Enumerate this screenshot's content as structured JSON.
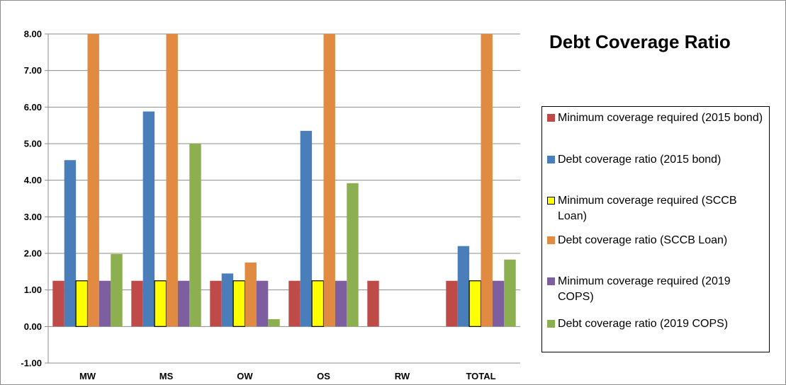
{
  "chart_data": {
    "type": "bar",
    "title": "Debt Coverage Ratio",
    "categories": [
      "MW",
      "MS",
      "OW",
      "OS",
      "RW",
      "TOTAL"
    ],
    "y_ticks": [
      "-1.00",
      "0.00",
      "1.00",
      "2.00",
      "3.00",
      "4.00",
      "5.00",
      "6.00",
      "7.00",
      "8.00"
    ],
    "ylim": [
      -1,
      8
    ],
    "grid": true,
    "legend_position": "right",
    "series": [
      {
        "name": "Minimum coverage required (2015 bond)",
        "color": "#be4b48",
        "values": [
          1.25,
          1.25,
          1.25,
          1.25,
          1.25,
          1.25
        ]
      },
      {
        "name": "Debt coverage ratio (2015 bond)",
        "color": "#4a7ebb",
        "values": [
          4.55,
          5.88,
          1.45,
          5.35,
          null,
          2.2
        ]
      },
      {
        "name": "Minimum coverage required (SCCB Loan)",
        "color": "#ffff00",
        "border": "#000000",
        "values": [
          1.25,
          1.25,
          1.25,
          1.25,
          null,
          1.25
        ]
      },
      {
        "name": "Debt coverage ratio (SCCB Loan)",
        "color": "#e08a42",
        "values": [
          8.0,
          8.0,
          1.75,
          8.0,
          null,
          8.0
        ]
      },
      {
        "name": "Minimum coverage required (2019 COPS)",
        "color": "#7d5fa0",
        "values": [
          1.25,
          1.25,
          1.25,
          1.25,
          null,
          1.25
        ]
      },
      {
        "name": "Debt coverage ratio (2019 COPS)",
        "color": "#8cb050",
        "values": [
          1.98,
          5.0,
          0.2,
          3.92,
          null,
          1.83
        ]
      }
    ]
  }
}
